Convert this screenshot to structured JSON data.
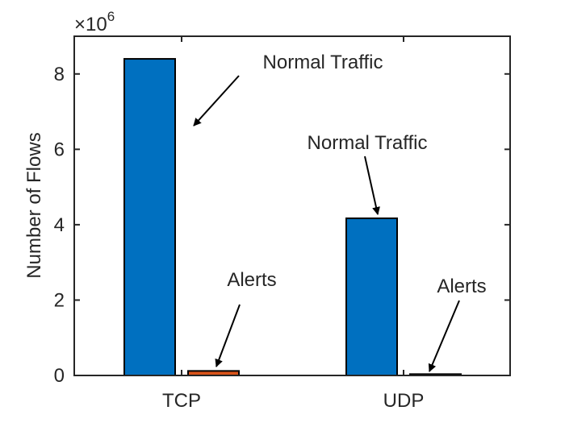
{
  "chart_data": {
    "type": "bar",
    "categories": [
      "TCP",
      "UDP"
    ],
    "series": [
      {
        "values": [
          8400000,
          4170000
        ],
        "color": "#0070c0"
      },
      {
        "values": [
          120000,
          35000
        ],
        "color": "#d95319"
      }
    ],
    "title": "",
    "xlabel": "",
    "ylabel": "Number of Flows",
    "ylim": [
      0,
      9000000
    ],
    "yticks": [
      0,
      2,
      4,
      6,
      8
    ],
    "yexponent_label": "×10",
    "yexponent_power": "6",
    "grid": false,
    "legend": "none",
    "annotations": [
      {
        "text": "Normal Traffic",
        "category": "TCP",
        "series": 0
      },
      {
        "text": "Alerts",
        "category": "TCP",
        "series": 1
      },
      {
        "text": "Normal Traffic",
        "category": "UDP",
        "series": 0
      },
      {
        "text": "Alerts",
        "category": "UDP",
        "series": 1
      }
    ]
  }
}
